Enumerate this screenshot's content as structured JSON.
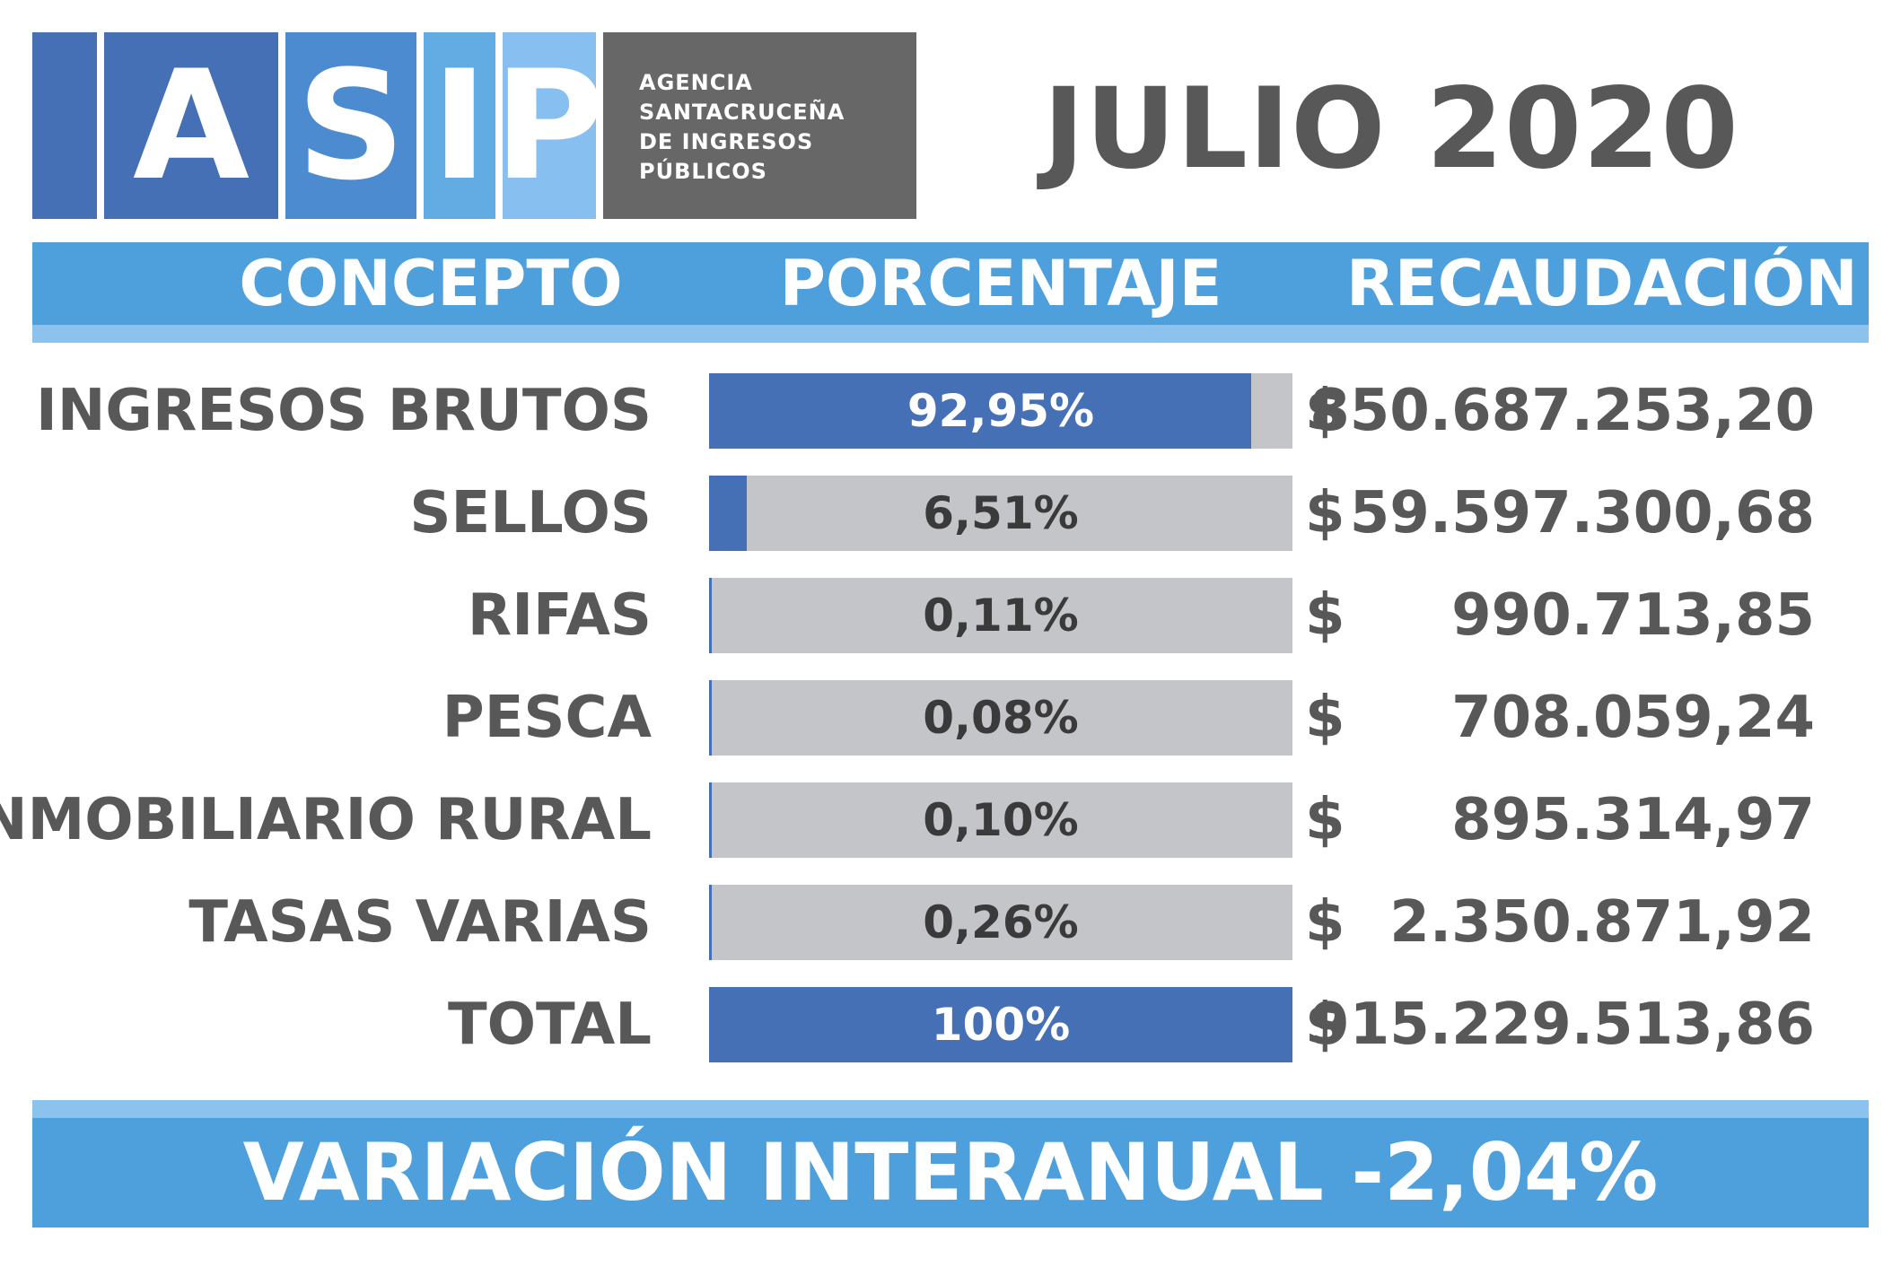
{
  "logo": {
    "letters": [
      "A",
      "S",
      "I",
      "P"
    ],
    "colors": [
      "#4570b5",
      "#4c8bd0",
      "#62abe3",
      "#86bff0"
    ],
    "agency_lines": [
      "AGENCIA",
      "SANTACRUCEÑA",
      "DE INGRESOS",
      "PÚBLICOS"
    ],
    "agency_color": "#676767"
  },
  "title": "JULIO 2020",
  "columns": [
    "CONCEPTO",
    "PORCENTAJE",
    "RECAUDACIÓN"
  ],
  "currency_symbol": "$",
  "chart_data": {
    "type": "bar",
    "categories": [
      "INGRESOS BRUTOS",
      "SELLOS",
      "RIFAS",
      "PESCA",
      "INMOBILIARIO RURAL",
      "TASAS VARIAS",
      "TOTAL"
    ],
    "values": [
      92.95,
      6.51,
      0.11,
      0.08,
      0.1,
      0.26,
      100
    ],
    "value_labels": [
      "92,95%",
      "6,51%",
      "0,11%",
      "0,08%",
      "0,10%",
      "0,26%",
      "100%"
    ],
    "amounts": [
      "850.687.253,20",
      "59.597.300,68",
      "990.713,85",
      "708.059,24",
      "895.314,97",
      "2.350.871,92",
      "915.229.513,86"
    ],
    "ylim": [
      0,
      100
    ],
    "bar_color": "#4570b5",
    "track_color": "#c4c5c9"
  },
  "footer": "VARIACIÓN INTERANUAL -2,04%",
  "colors": {
    "band": "#4ea0dc",
    "band_stripe": "#8cc3ee",
    "text_gray": "#585858"
  }
}
